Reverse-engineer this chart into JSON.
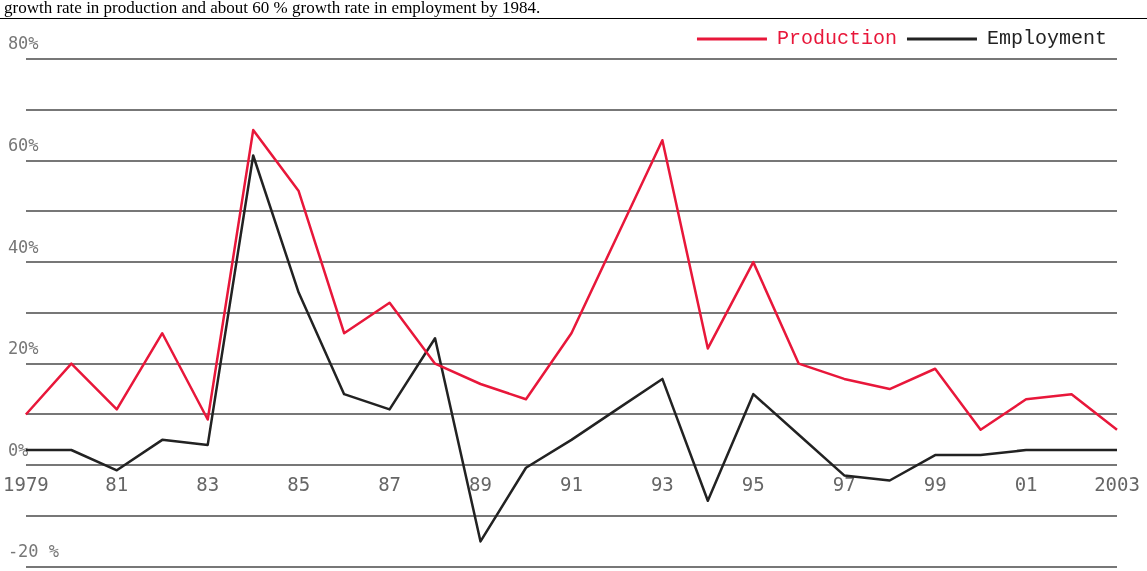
{
  "chart_data": {
    "type": "line",
    "annotations": [
      "growth rate in production and about 60 % growth rate in employment by 1984."
    ],
    "categories": [
      "1979",
      null,
      "81",
      null,
      "83",
      null,
      "85",
      null,
      "87",
      null,
      "89",
      null,
      "91",
      null,
      "93",
      null,
      "95",
      null,
      "97",
      null,
      "99",
      null,
      "01",
      null,
      "2003"
    ],
    "series": [
      {
        "name": "Production",
        "color": "#e8173a",
        "values": [
          10,
          20,
          11,
          26,
          9,
          66,
          54,
          26,
          32,
          20,
          16,
          13,
          26,
          45,
          64,
          23,
          40,
          20,
          17,
          15,
          19,
          7,
          13,
          14,
          7
        ]
      },
      {
        "name": "Employment",
        "color": "#222222",
        "values": [
          3,
          3,
          -1,
          5,
          4,
          61,
          34,
          14,
          11,
          25,
          -15,
          -0.5,
          5,
          11,
          17,
          -7,
          14,
          6,
          -2,
          -3,
          2,
          2,
          3,
          3,
          3
        ]
      }
    ],
    "ylim": [
      -20,
      80
    ],
    "yticks": [
      {
        "value": -20,
        "label": "-20 %"
      },
      {
        "value": -10,
        "label": null
      },
      {
        "value": 0,
        "label": "0%"
      },
      {
        "value": 10,
        "label": null
      },
      {
        "value": 20,
        "label": "20%"
      },
      {
        "value": 30,
        "label": null
      },
      {
        "value": 40,
        "label": "40%"
      },
      {
        "value": 50,
        "label": null
      },
      {
        "value": 60,
        "label": "60%"
      },
      {
        "value": 70,
        "label": null
      },
      {
        "value": 80,
        "label": "80%"
      }
    ],
    "grid": "y",
    "legend": "top right",
    "line_style": "solid"
  }
}
